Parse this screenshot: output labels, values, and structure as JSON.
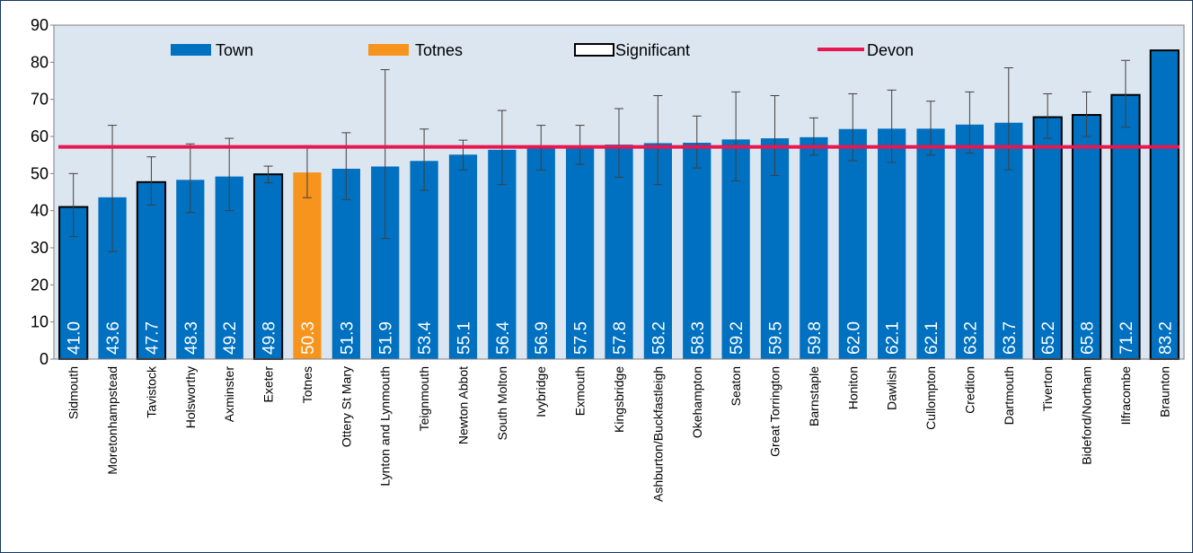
{
  "chart_data": {
    "type": "bar",
    "categories": [
      "Sidmouth",
      "Moretonhampstead",
      "Tavistock",
      "Holsworthy",
      "Axminster",
      "Exeter",
      "Totnes",
      "Ottery St Mary",
      "Lynton and Lynmouth",
      "Teignmouth",
      "Newton Abbot",
      "South Molton",
      "Ivybridge",
      "Exmouth",
      "Kingsbridge",
      "Ashburton/Buckfastleigh",
      "Okehampton",
      "Seaton",
      "Great Torrington",
      "Barnstaple",
      "Honiton",
      "Dawlish",
      "Cullompton",
      "Crediton",
      "Dartmouth",
      "Tiverton",
      "Bideford/Northam",
      "Ilfracombe",
      "Braunton"
    ],
    "values": [
      41.0,
      43.6,
      47.7,
      48.3,
      49.2,
      49.8,
      50.3,
      51.3,
      51.9,
      53.4,
      55.1,
      56.4,
      56.9,
      57.5,
      57.8,
      58.2,
      58.3,
      59.2,
      59.5,
      59.8,
      62.0,
      62.1,
      62.1,
      63.2,
      63.7,
      65.2,
      65.8,
      71.2,
      83.2
    ],
    "value_labels": [
      "41.0",
      "43.6",
      "47.7",
      "48.3",
      "49.2",
      "49.8",
      "50.3",
      "51.3",
      "51.9",
      "53.4",
      "55.1",
      "56.4",
      "56.9",
      "57.5",
      "57.8",
      "58.2",
      "58.3",
      "59.2",
      "59.5",
      "59.8",
      "62.0",
      "62.1",
      "62.1",
      "63.2",
      "63.7",
      "65.2",
      "65.8",
      "71.2",
      "83.2"
    ],
    "error_low": [
      33,
      29,
      41.5,
      39.5,
      40,
      47.5,
      43.5,
      43,
      32.5,
      45.5,
      51,
      47,
      51,
      52.5,
      49,
      47,
      51.5,
      48,
      49.5,
      55,
      53.5,
      53,
      55,
      55.5,
      51,
      59.5,
      60,
      62.5,
      null
    ],
    "error_high": [
      50,
      63,
      54.5,
      58,
      59.5,
      52,
      57.5,
      61,
      78,
      62,
      59,
      67,
      63,
      63,
      67.5,
      71,
      65.5,
      72,
      71,
      65,
      71.5,
      72.5,
      69.5,
      72,
      78.5,
      71.5,
      72,
      80.5,
      null
    ],
    "significant": [
      true,
      false,
      true,
      false,
      false,
      true,
      false,
      false,
      false,
      false,
      false,
      false,
      false,
      false,
      false,
      false,
      false,
      false,
      false,
      false,
      false,
      false,
      false,
      false,
      false,
      true,
      true,
      true,
      true
    ],
    "color": "#0070c0",
    "highlight_color": "#f7941d",
    "highlight_index": 6,
    "legend": [
      {
        "name": "Town"
      },
      {
        "name": "Totnes"
      },
      {
        "name": "Significant"
      },
      {
        "name": "Devon"
      }
    ],
    "reference_line": {
      "name": "Devon",
      "value": 57.2,
      "color": "#e8174f"
    },
    "ylim": [
      0,
      90
    ],
    "yticks": [
      0,
      10,
      20,
      30,
      40,
      50,
      60,
      70,
      80,
      90
    ],
    "grid": false
  }
}
